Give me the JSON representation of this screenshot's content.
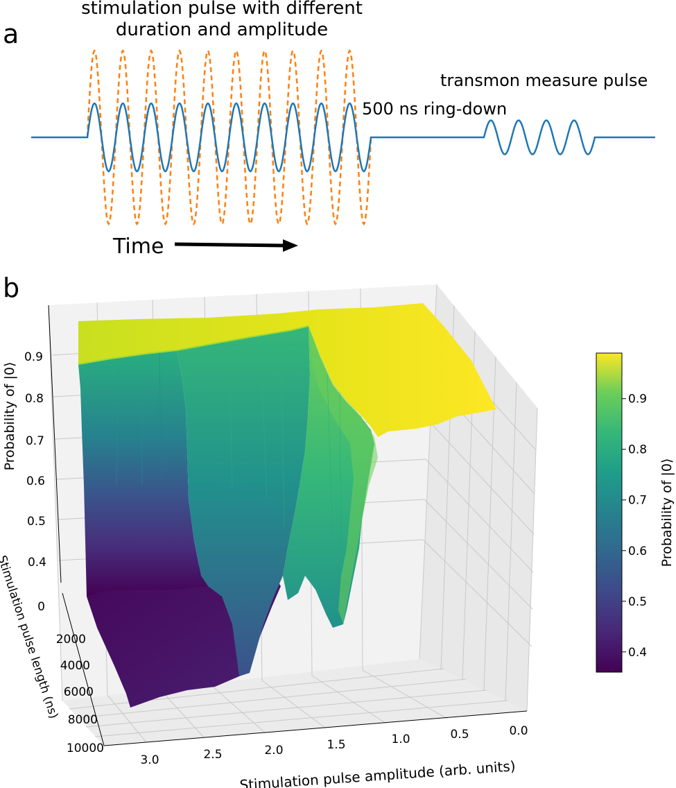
{
  "panel_a": {
    "label": "a",
    "stim_label_line1": "stimulation pulse with different",
    "stim_label_line2": "duration and amplitude",
    "measure_label": "transmon measure pulse",
    "ringdown_label": "500 ns ring-down",
    "time_label": "Time",
    "colors": {
      "pulse": "#1f77b4",
      "stim_dashed": "#ff7f0e",
      "arrow": "#000000"
    }
  },
  "panel_b": {
    "label": "b",
    "colorbar": {
      "label": "Probability of |0⟩",
      "range": [
        0.36,
        0.99
      ],
      "ticks": [
        "0.4",
        "0.5",
        "0.6",
        "0.7",
        "0.8",
        "0.9"
      ]
    }
  },
  "chart_data": [
    {
      "type": "line",
      "title": "",
      "xlabel": "Time",
      "ylabel": "",
      "series": [
        {
          "name": "stimulation pulse (small amplitude)",
          "style": "solid",
          "cycles": 10,
          "relative_amplitude": 1.0
        },
        {
          "name": "stimulation pulse (large amplitude)",
          "style": "dashed",
          "cycles": 10,
          "relative_amplitude": 2.55
        },
        {
          "name": "500 ns ring-down",
          "style": "solid",
          "segment": "flat"
        },
        {
          "name": "transmon measure pulse",
          "style": "solid",
          "cycles": 4,
          "relative_amplitude": 0.5
        }
      ]
    },
    {
      "type": "surface",
      "title": "",
      "xlabel": "Stimulation pulse amplitude (arb. units)",
      "ylabel": "Stimulation pulse length (ns)",
      "zlabel": "Probability of |0⟩",
      "x_ticks": [
        "3.0",
        "2.5",
        "2.0",
        "1.5",
        "1.0",
        "0.5",
        "0.0"
      ],
      "y_ticks": [
        "0",
        "2000",
        "4000",
        "6000",
        "8000",
        "10000"
      ],
      "z_ticks": [
        "0.4",
        "0.5",
        "0.6",
        "0.7",
        "0.8",
        "0.9"
      ],
      "xlim": [
        0,
        3.25
      ],
      "ylim": [
        0,
        10000
      ],
      "zlim": [
        0.35,
        1.0
      ],
      "colormap": "viridis",
      "notes": "P(|0>) stays ~0.97 for amplitude below ~1.2 at all lengths; drops sharply above ~1.2, falling faster for longer pulses, reaching ~0.36 at high amplitude and long length."
    }
  ]
}
